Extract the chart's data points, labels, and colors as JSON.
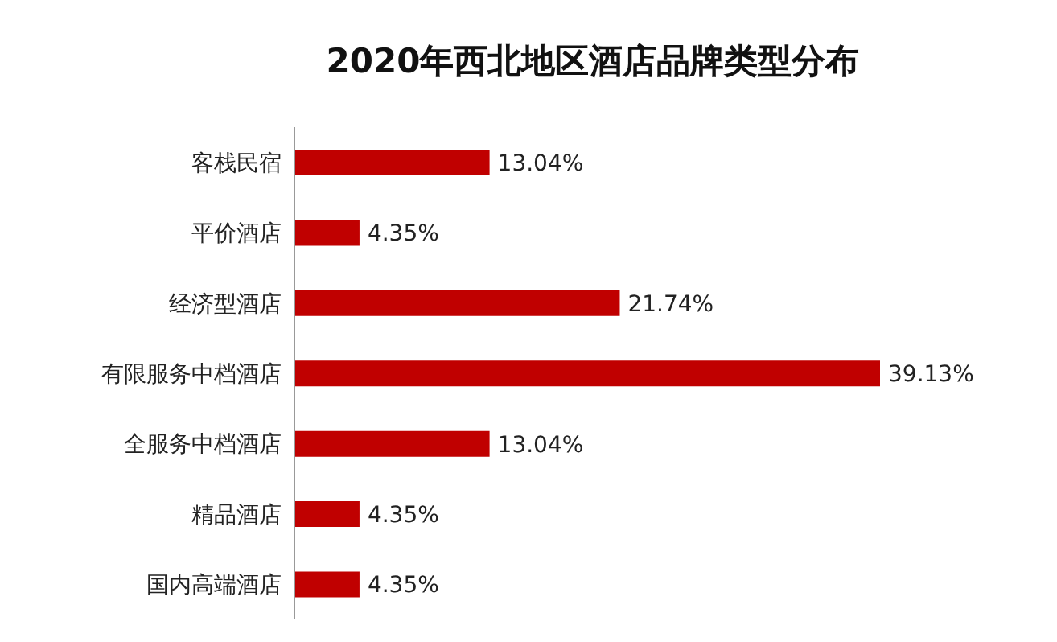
{
  "chart_data": {
    "type": "bar",
    "orientation": "horizontal",
    "title": "2020年西北地区酒店品牌类型分布",
    "categories": [
      "客栈民宿",
      "平价酒店",
      "经济型酒店",
      "有限服务中档酒店",
      "全服务中档酒店",
      "精品酒店",
      "国内高端酒店"
    ],
    "values": [
      13.04,
      4.35,
      21.74,
      39.13,
      13.04,
      4.35,
      4.35
    ],
    "value_labels": [
      "13.04%",
      "4.35%",
      "21.74%",
      "39.13%",
      "13.04%",
      "4.35%",
      "4.35%"
    ],
    "color": "#c00000"
  }
}
